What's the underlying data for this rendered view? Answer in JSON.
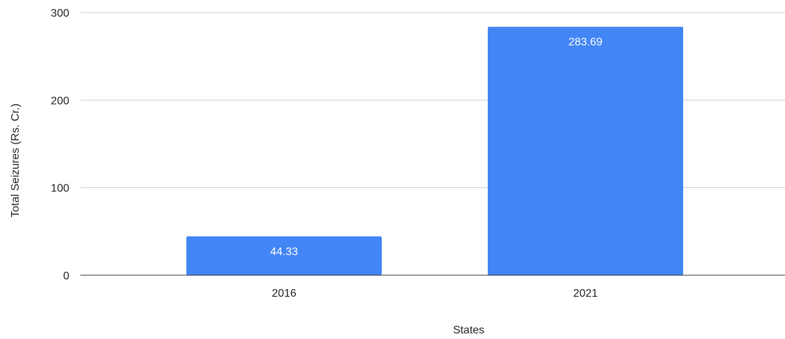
{
  "chart_data": {
    "type": "bar",
    "categories": [
      "2016",
      "2021"
    ],
    "values": [
      44.33,
      283.69
    ],
    "data_labels": [
      "44.33",
      "283.69"
    ],
    "xlabel": "States",
    "ylabel": "Total Seizures (Rs. Cr.)",
    "ylim": [
      0,
      300
    ],
    "yticks": [
      0,
      100,
      200,
      300
    ],
    "ytick_labels": [
      "0",
      "100",
      "200",
      "300"
    ],
    "grid": true,
    "legend": "none",
    "colors": {
      "bar": "#4285f4",
      "gridline": "#cccccc",
      "baseline": "#333333",
      "text": "#222222",
      "data_label": "#ffffff"
    }
  }
}
